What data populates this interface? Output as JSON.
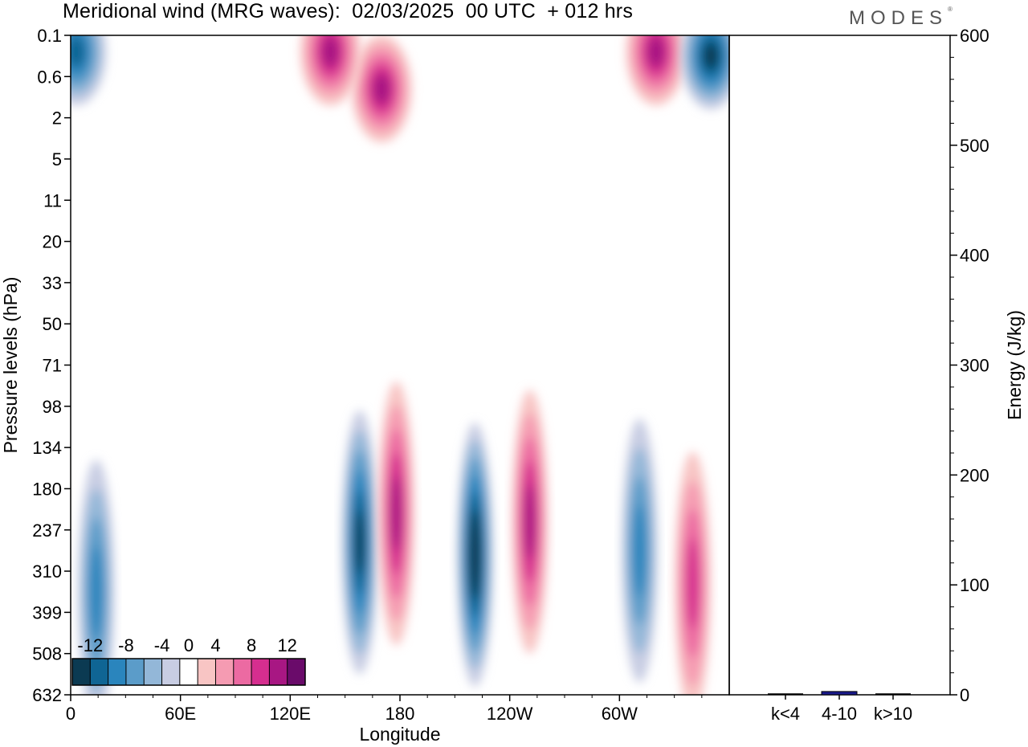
{
  "title": "Meridional wind (MRG waves):  02/03/2025  00 UTC  + 012 hrs",
  "brand": "MODES",
  "brand_mark": "®",
  "chart_data": [
    {
      "type": "heatmap",
      "title": "Meridional wind (MRG waves):  02/03/2025  00 UTC  + 012 hrs",
      "xlabel": "Longitude",
      "ylabel": "Pressure levels (hPa)",
      "x_ticks": [
        "0",
        "60E",
        "120E",
        "180",
        "120W",
        "60W"
      ],
      "x_tick_lons": [
        0,
        60,
        120,
        180,
        240,
        300
      ],
      "xlim": [
        0,
        360
      ],
      "y_ticks": [
        "0.1",
        "0.6",
        "2",
        "5",
        "11",
        "20",
        "33",
        "50",
        "71",
        "98",
        "134",
        "180",
        "237",
        "310",
        "399",
        "508",
        "632"
      ],
      "y_scale": "level-index",
      "colorbar": {
        "ticks": [
          "-12",
          "-8",
          "-4",
          "0",
          "4",
          "8",
          "12"
        ],
        "levels": [
          -14,
          -12,
          -10,
          -8,
          -6,
          -4,
          -2,
          2,
          4,
          6,
          8,
          10,
          12,
          14
        ],
        "colors": [
          "#0b3a52",
          "#0f6594",
          "#2a85bd",
          "#5b9cc9",
          "#93b7d8",
          "#c8cde3",
          "#ffffff",
          "#f8c5c4",
          "#f59bb2",
          "#ec6aa2",
          "#d62e8f",
          "#a81783",
          "#6a0b6a"
        ]
      },
      "features": [
        {
          "lon": 158,
          "level": 12.3,
          "value": -12
        },
        {
          "lon": 178,
          "level": 11.6,
          "value": 10
        },
        {
          "lon": 221,
          "level": 12.6,
          "value": -14
        },
        {
          "lon": 251,
          "level": 11.8,
          "value": 10
        },
        {
          "lon": 311,
          "level": 12.5,
          "value": -8
        },
        {
          "lon": 340,
          "level": 13.3,
          "value": 8
        },
        {
          "lon": 14,
          "level": 13.5,
          "value": -8
        },
        {
          "lon": 170,
          "level": 1.3,
          "value": 10
        },
        {
          "lon": 142,
          "level": 0.4,
          "value": 10
        },
        {
          "lon": 320,
          "level": 0.4,
          "value": 10
        },
        {
          "lon": 350,
          "level": 0.5,
          "value": -12
        },
        {
          "lon": 3,
          "level": 0.4,
          "value": -10
        }
      ]
    },
    {
      "type": "bar",
      "ylabel": "Energy (J/kg)",
      "categories": [
        "k<4",
        "4-10",
        "k>10"
      ],
      "values": [
        0,
        3,
        0
      ],
      "ylim": [
        0,
        600
      ],
      "y_ticks": [
        0,
        100,
        200,
        300,
        400,
        500,
        600
      ],
      "bar_color": "#1a1a8c"
    }
  ]
}
